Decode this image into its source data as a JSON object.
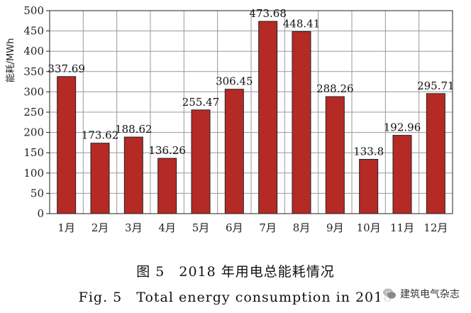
{
  "chart_data": {
    "type": "bar",
    "categories": [
      "1月",
      "2月",
      "3月",
      "4月",
      "5月",
      "6月",
      "7月",
      "8月",
      "9月",
      "10月",
      "11月",
      "12月"
    ],
    "values": [
      337.69,
      173.62,
      188.62,
      136.26,
      255.47,
      306.45,
      473.68,
      448.41,
      288.26,
      133.8,
      192.96,
      295.71
    ],
    "data_labels": [
      "337.69",
      "173.62",
      "188.62",
      "136.26",
      "255.47",
      "306.45",
      "473.68",
      "448.41",
      "288.26",
      "133.8",
      "192.96",
      "295.71"
    ],
    "ylabel": "能耗/MWh",
    "ylim": [
      0,
      500
    ],
    "yticks": [
      0,
      50,
      100,
      150,
      200,
      250,
      300,
      350,
      400,
      450,
      500
    ],
    "grid": true,
    "bar_color": "#b52a25",
    "bar_edge_color": "#222222",
    "grid_color": "#999999"
  },
  "caption_zh": "图 5　2018 年用电总能耗情况",
  "caption_en": "Fig. 5　Total energy consumption in 2018",
  "watermark": {
    "text": "建筑电气杂志",
    "icon": "wechat-icon"
  }
}
